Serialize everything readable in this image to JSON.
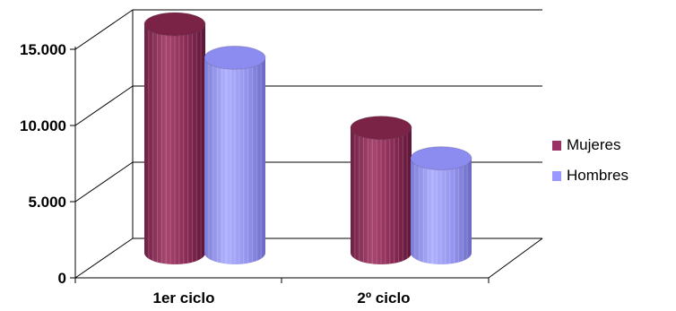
{
  "chart_data": {
    "type": "bar",
    "style": "3d-cylinder",
    "categories": [
      "1er ciclo",
      "2º ciclo"
    ],
    "series": [
      {
        "name": "Mujeres",
        "values": [
          15000,
          8200
        ],
        "color": "#993366"
      },
      {
        "name": "Hombres",
        "values": [
          12800,
          6200
        ],
        "color": "#9999ff"
      }
    ],
    "yticks": [
      "0",
      "5.000",
      "10.000",
      "15.000"
    ],
    "ylim": [
      0,
      15000
    ],
    "grid": true,
    "legend": "right"
  }
}
